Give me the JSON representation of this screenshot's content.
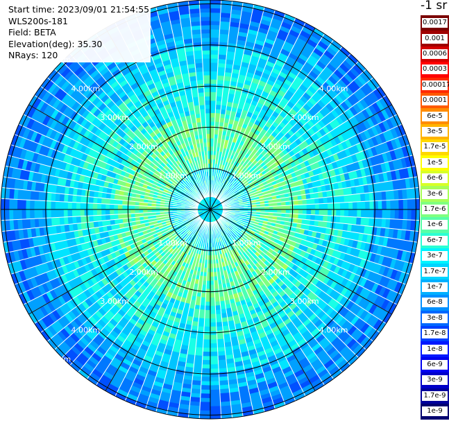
{
  "header": {
    "start_time": "Start time: 2023/09/01 21:54:55",
    "device": "WLS200s-181",
    "field": "Field: BETA",
    "elevation": "Elevation(deg): 35.30",
    "nrays": "NRays: 120"
  },
  "colorbar": {
    "title": "-1 sr",
    "labels": [
      "0.0017",
      "0.001",
      "0.0006",
      "0.0003",
      "0.00017",
      "0.0001",
      "6e-5",
      "3e-5",
      "1.7e-5",
      "1e-5",
      "6e-6",
      "3e-6",
      "1.7e-6",
      "1e-6",
      "6e-7",
      "3e-7",
      "1.7e-7",
      "1e-7",
      "6e-8",
      "3e-8",
      "1.7e-8",
      "1e-8",
      "6e-9",
      "3e-9",
      "1.7e-9",
      "1e-9"
    ],
    "colors": [
      "#7a0000",
      "#a00000",
      "#d40000",
      "#ff0000",
      "#ff2a00",
      "#ff5a00",
      "#ff8c00",
      "#ffb400",
      "#ffd800",
      "#ffff00",
      "#d8ff27",
      "#a8ff58",
      "#7fff7f",
      "#57ffa7",
      "#2bffd3",
      "#00f4ff",
      "#00d4ff",
      "#00b0ff",
      "#0090ff",
      "#0068ff",
      "#0040ff",
      "#0018ff",
      "#0000f0",
      "#0000c8",
      "#00009c",
      "#000070"
    ]
  },
  "ppi": {
    "rays": 120,
    "rings_km": [
      1,
      2,
      3,
      4,
      5
    ],
    "ring_labels": [
      "1.00km",
      "2.00km",
      "3.00km",
      "4.00km",
      "5.00km"
    ]
  }
}
